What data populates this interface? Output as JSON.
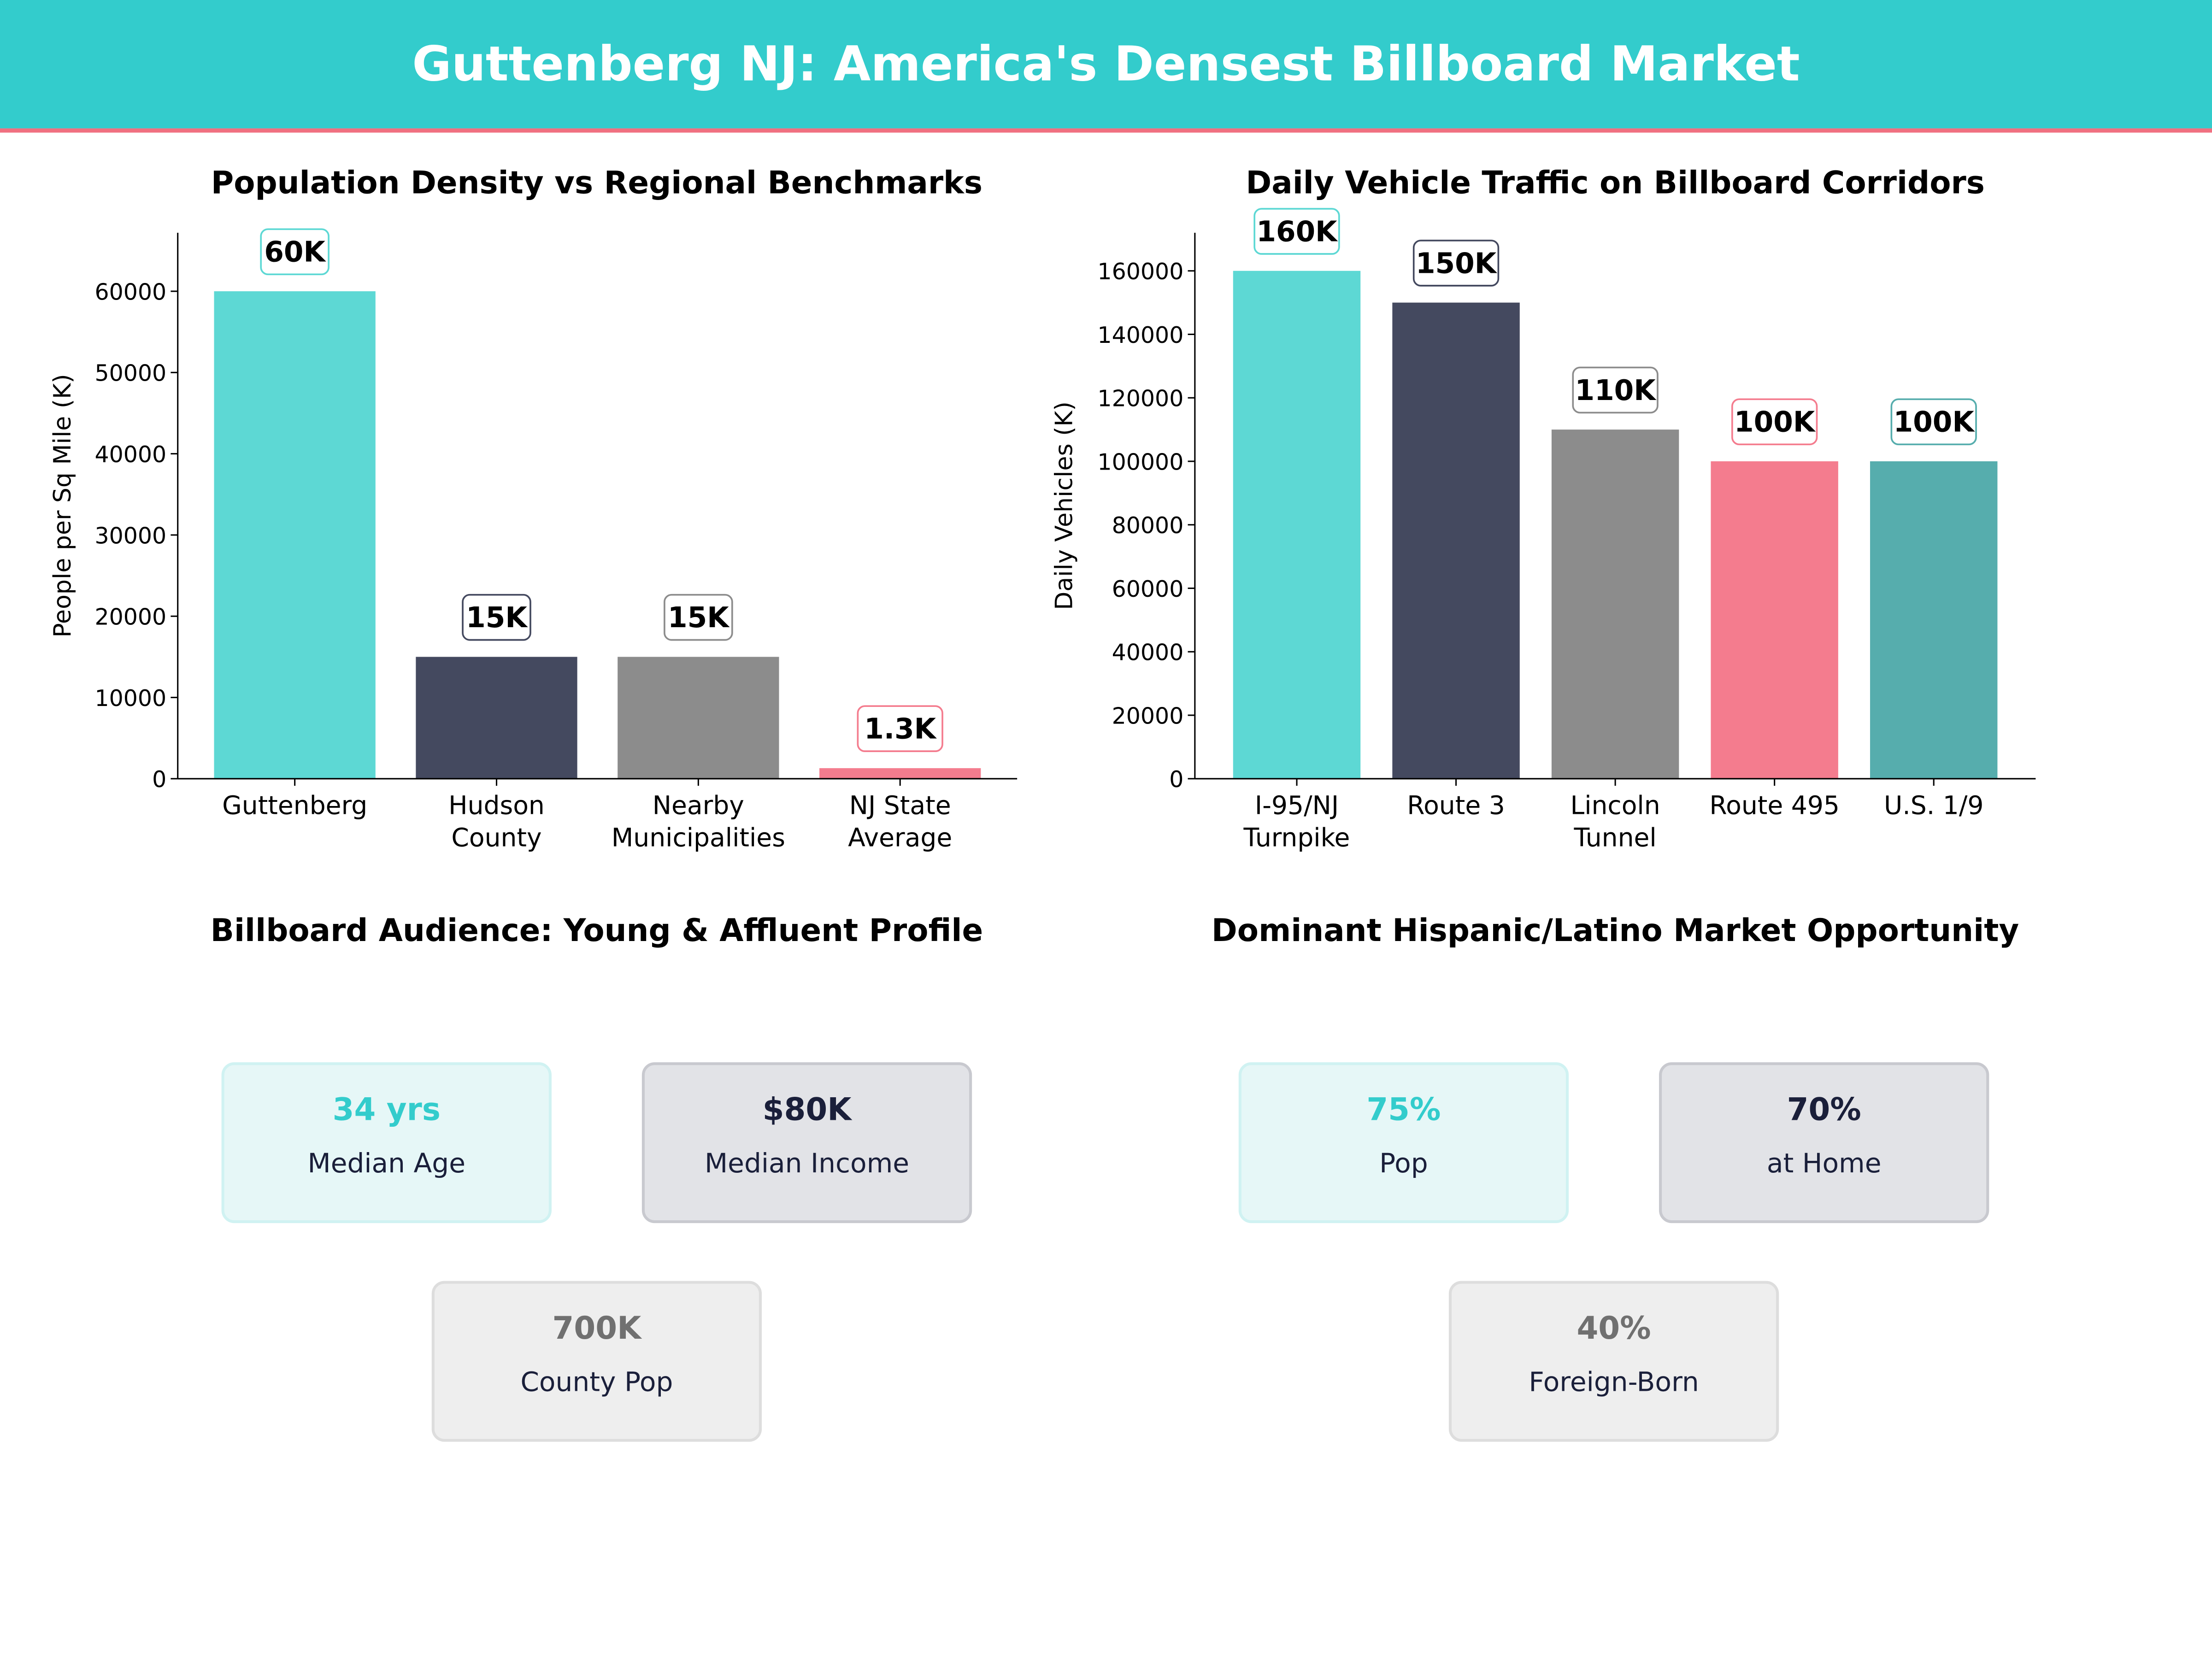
{
  "header": {
    "title": "Guttenberg NJ: America's Densest Billboard Market",
    "bg_color": "#33CCCC",
    "accent_line_color": "#F07080"
  },
  "chart_data": [
    {
      "type": "bar",
      "title": "Population Density vs Regional Benchmarks",
      "xlabel": "",
      "ylabel": "People per Sq Mile (K)",
      "categories": [
        "Guttenberg",
        "Hudson\nCounty",
        "Nearby\nMunicipalities",
        "NJ State\nAverage"
      ],
      "values": [
        60000,
        15000,
        15000,
        1300
      ],
      "data_labels": [
        "60K",
        "15K",
        "15K",
        "1.3K"
      ],
      "colors": [
        "#5DD8D4",
        "#44495F",
        "#8C8C8C",
        "#F47C8E"
      ],
      "ylim": [
        0,
        67200
      ],
      "yticks": [
        0,
        10000,
        20000,
        30000,
        40000,
        50000,
        60000
      ],
      "grid": false
    },
    {
      "type": "bar",
      "title": "Daily Vehicle Traffic on Billboard Corridors",
      "xlabel": "",
      "ylabel": "Daily Vehicles (K)",
      "categories": [
        "I-95/NJ\nTurnpike",
        "Route 3",
        "Lincoln\nTunnel",
        "Route 495",
        "U.S. 1/9"
      ],
      "values": [
        160000,
        150000,
        110000,
        100000,
        100000
      ],
      "data_labels": [
        "160K",
        "150K",
        "110K",
        "100K",
        "100K"
      ],
      "colors": [
        "#5DD8D4",
        "#44495F",
        "#8C8C8C",
        "#F47C8E",
        "#56ADAD"
      ],
      "ylim": [
        0,
        172000
      ],
      "yticks": [
        0,
        20000,
        40000,
        60000,
        80000,
        100000,
        120000,
        140000,
        160000
      ],
      "grid": false
    }
  ],
  "panels": [
    {
      "title": "Billboard Audience: Young & Affluent Profile",
      "cards": [
        {
          "value": "34 yrs",
          "label": "Median Age",
          "style": "teal"
        },
        {
          "value": "$80K",
          "label": "Median Income",
          "style": "dark"
        },
        {
          "value": "700K",
          "label": "County Pop",
          "style": "gray"
        }
      ]
    },
    {
      "title": "Dominant Hispanic/Latino Market Opportunity",
      "cards": [
        {
          "value": "75%",
          "label": "Pop",
          "style": "teal"
        },
        {
          "value": "70%",
          "label": "at Home",
          "style": "dark"
        },
        {
          "value": "40%",
          "label": "Foreign-Born",
          "style": "gray"
        }
      ]
    }
  ],
  "card_styles": {
    "teal": {
      "fill": "#E6F7F7",
      "stroke": "#D0F2F2",
      "value_color": "#33CCCC"
    },
    "dark": {
      "fill": "#E2E3E7",
      "stroke": "#C8C9CF",
      "value_color": "#1A1F3A"
    },
    "gray": {
      "fill": "#EEEEEE",
      "stroke": "#DDDDDD",
      "value_color": "#707070"
    }
  },
  "card_label_color": "#1A1F3A"
}
